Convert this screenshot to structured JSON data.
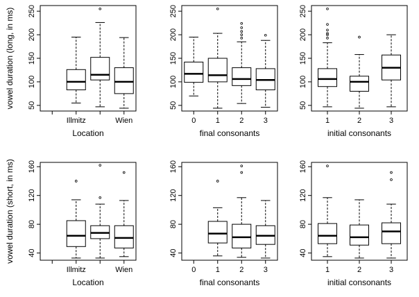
{
  "chart_data": [
    {
      "type": "boxplot",
      "ylabel": "vowel duration (long, in ms)",
      "xlabel": "Location",
      "ylim": [
        38,
        262
      ],
      "yticks": [
        50,
        100,
        150,
        200,
        250
      ],
      "categories": [
        "",
        "Illmitz",
        "",
        "Wien"
      ],
      "tick_labels": [
        "Illmitz",
        "Wien"
      ],
      "boxes": [
        {
          "pos": 1,
          "whisker_low": 55,
          "q1": 83,
          "median": 100,
          "q3": 126,
          "whisker_high": 195,
          "outliers": []
        },
        {
          "pos": 2,
          "whisker_low": 47,
          "q1": 104,
          "median": 115,
          "q3": 152,
          "whisker_high": 226,
          "outliers": [
            255
          ]
        },
        {
          "pos": 3,
          "whisker_low": 44,
          "q1": 75,
          "median": 100,
          "q3": 130,
          "whisker_high": 194,
          "outliers": []
        }
      ]
    },
    {
      "type": "boxplot",
      "ylabel": "",
      "xlabel": "final consonants",
      "ylim": [
        38,
        262
      ],
      "yticks": [
        50,
        100,
        150,
        200,
        250
      ],
      "categories": [
        "0",
        "1",
        "2",
        "3"
      ],
      "tick_labels": [
        "0",
        "1",
        "2",
        "3"
      ],
      "boxes": [
        {
          "pos": 0,
          "whisker_low": 70,
          "q1": 99,
          "median": 117,
          "q3": 142,
          "whisker_high": 195,
          "outliers": []
        },
        {
          "pos": 1,
          "whisker_low": 44,
          "q1": 100,
          "median": 114,
          "q3": 150,
          "whisker_high": 203,
          "outliers": [
            255
          ]
        },
        {
          "pos": 2,
          "whisker_low": 54,
          "q1": 92,
          "median": 106,
          "q3": 130,
          "whisker_high": 185,
          "outliers": [
            193,
            200,
            207,
            215,
            224
          ]
        },
        {
          "pos": 3,
          "whisker_low": 46,
          "q1": 83,
          "median": 104,
          "q3": 128,
          "whisker_high": 188,
          "outliers": [
            199
          ]
        }
      ]
    },
    {
      "type": "boxplot",
      "ylabel": "",
      "xlabel": "initial consonants",
      "ylim": [
        38,
        262
      ],
      "yticks": [
        50,
        100,
        150,
        200,
        250
      ],
      "categories": [
        "1",
        "2",
        "3"
      ],
      "tick_labels": [
        "1",
        "2",
        "3"
      ],
      "boxes": [
        {
          "pos": 1,
          "whisker_low": 47,
          "q1": 90,
          "median": 106,
          "q3": 128,
          "whisker_high": 183,
          "outliers": [
            193,
            200,
            203,
            210,
            222,
            255
          ]
        },
        {
          "pos": 2,
          "whisker_low": 44,
          "q1": 80,
          "median": 100,
          "q3": 112,
          "whisker_high": 158,
          "outliers": [
            195
          ]
        },
        {
          "pos": 3,
          "whisker_low": 47,
          "q1": 104,
          "median": 130,
          "q3": 157,
          "whisker_high": 200,
          "outliers": []
        }
      ]
    },
    {
      "type": "boxplot",
      "ylabel": "vowel duration (short, in ms)",
      "xlabel": "Location",
      "ylim": [
        30,
        166
      ],
      "yticks": [
        40,
        80,
        120,
        160
      ],
      "categories": [
        "",
        "Illmitz",
        "",
        "Wien"
      ],
      "tick_labels": [
        "Illmitz",
        "Wien"
      ],
      "boxes": [
        {
          "pos": 1,
          "whisker_low": 33,
          "q1": 49,
          "median": 64,
          "q3": 85,
          "whisker_high": 114,
          "outliers": [
            140
          ]
        },
        {
          "pos": 2,
          "whisker_low": 33,
          "q1": 60,
          "median": 68,
          "q3": 78,
          "whisker_high": 108,
          "outliers": [
            117,
            162
          ]
        },
        {
          "pos": 3,
          "whisker_low": 35,
          "q1": 47,
          "median": 61,
          "q3": 78,
          "whisker_high": 113,
          "outliers": [
            152
          ]
        }
      ]
    },
    {
      "type": "boxplot",
      "ylabel": "",
      "xlabel": "final consonants",
      "ylim": [
        30,
        166
      ],
      "yticks": [
        40,
        80,
        120,
        160
      ],
      "categories": [
        "0",
        "1",
        "2",
        "3"
      ],
      "tick_labels": [
        "0",
        "1",
        "2",
        "3"
      ],
      "boxes": [
        {
          "pos": 1,
          "whisker_low": 36,
          "q1": 54,
          "median": 67,
          "q3": 84,
          "whisker_high": 103,
          "outliers": [
            140
          ]
        },
        {
          "pos": 2,
          "whisker_low": 34,
          "q1": 47,
          "median": 62,
          "q3": 80,
          "whisker_high": 117,
          "outliers": [
            152,
            161
          ]
        },
        {
          "pos": 3,
          "whisker_low": 33,
          "q1": 52,
          "median": 64,
          "q3": 78,
          "whisker_high": 113,
          "outliers": []
        }
      ]
    },
    {
      "type": "boxplot",
      "ylabel": "",
      "xlabel": "initial consonants",
      "ylim": [
        30,
        166
      ],
      "yticks": [
        40,
        80,
        120,
        160
      ],
      "categories": [
        "1",
        "2",
        "3"
      ],
      "tick_labels": [
        "1",
        "2",
        "3"
      ],
      "boxes": [
        {
          "pos": 1,
          "whisker_low": 35,
          "q1": 53,
          "median": 64,
          "q3": 81,
          "whisker_high": 117,
          "outliers": [
            161
          ]
        },
        {
          "pos": 2,
          "whisker_low": 33,
          "q1": 51,
          "median": 62,
          "q3": 79,
          "whisker_high": 114,
          "outliers": []
        },
        {
          "pos": 3,
          "whisker_low": 33,
          "q1": 53,
          "median": 70,
          "q3": 82,
          "whisker_high": 108,
          "outliers": [
            142,
            152
          ]
        }
      ]
    }
  ]
}
